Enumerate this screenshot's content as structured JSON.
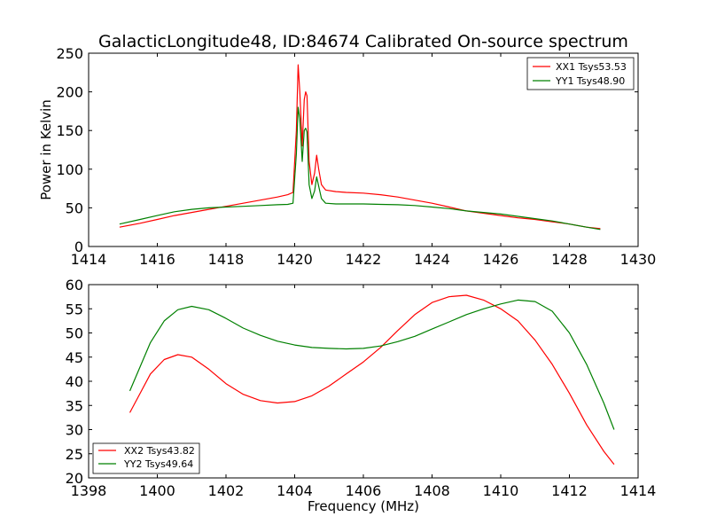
{
  "chart_data": [
    {
      "type": "line",
      "title": "GalacticLongitude48, ID:84674 Calibrated On-source spectrum",
      "xlabel": "",
      "ylabel": "Power in Kelvin",
      "xlim": [
        1414,
        1430
      ],
      "ylim": [
        0,
        250
      ],
      "xticks": [
        "1414",
        "1416",
        "1418",
        "1420",
        "1422",
        "1424",
        "1426",
        "1428",
        "1430"
      ],
      "yticks": [
        "0",
        "50",
        "100",
        "150",
        "200",
        "250"
      ],
      "grid": false,
      "legend_position": "top-right",
      "series": [
        {
          "name": "XX1 Tsys53.53",
          "color": "#ff0000",
          "x": [
            1414.9,
            1415.5,
            1416,
            1416.5,
            1417,
            1417.5,
            1418,
            1418.5,
            1419,
            1419.5,
            1419.8,
            1419.95,
            1420.05,
            1420.1,
            1420.15,
            1420.22,
            1420.28,
            1420.32,
            1420.36,
            1420.42,
            1420.5,
            1420.58,
            1420.64,
            1420.7,
            1420.78,
            1420.9,
            1421.2,
            1421.5,
            1422,
            1422.5,
            1423,
            1423.5,
            1424,
            1424.5,
            1425,
            1425.5,
            1426,
            1426.5,
            1427,
            1427.5,
            1428,
            1428.5,
            1428.9
          ],
          "y": [
            25,
            30,
            35,
            40,
            44,
            48,
            52,
            56,
            60,
            64,
            67,
            70,
            150,
            235,
            200,
            130,
            190,
            200,
            195,
            110,
            80,
            95,
            118,
            100,
            80,
            73,
            71,
            70,
            69,
            67,
            64,
            60,
            56,
            51,
            46,
            43,
            40,
            37,
            35,
            32,
            29,
            25,
            23
          ]
        },
        {
          "name": "YY1 Tsys48.90",
          "color": "#008000",
          "x": [
            1414.9,
            1415.5,
            1416,
            1416.5,
            1417,
            1417.5,
            1418,
            1418.5,
            1419,
            1419.5,
            1419.8,
            1419.95,
            1420.05,
            1420.1,
            1420.15,
            1420.22,
            1420.28,
            1420.32,
            1420.36,
            1420.42,
            1420.5,
            1420.58,
            1420.64,
            1420.7,
            1420.78,
            1420.9,
            1421.2,
            1421.5,
            1422,
            1422.5,
            1423,
            1423.5,
            1424,
            1424.5,
            1425,
            1425.5,
            1426,
            1426.5,
            1427,
            1427.5,
            1428,
            1428.5,
            1428.9
          ],
          "y": [
            29,
            35,
            40,
            45,
            48,
            50,
            51,
            52,
            53,
            54,
            54.5,
            56,
            120,
            180,
            165,
            110,
            150,
            153,
            148,
            80,
            62,
            72,
            90,
            78,
            62,
            56,
            55,
            55,
            55,
            54.5,
            54,
            53,
            51,
            49,
            46,
            44,
            42,
            39,
            36,
            33,
            29,
            25,
            22
          ]
        }
      ]
    },
    {
      "type": "line",
      "title": "",
      "xlabel": "Frequency (MHz)",
      "ylabel": "",
      "xlim": [
        1398,
        1414
      ],
      "ylim": [
        20,
        60
      ],
      "xticks": [
        "1398",
        "1400",
        "1402",
        "1404",
        "1406",
        "1408",
        "1410",
        "1412",
        "1414"
      ],
      "yticks": [
        "20",
        "25",
        "30",
        "35",
        "40",
        "45",
        "50",
        "55",
        "60"
      ],
      "grid": false,
      "legend_position": "bottom-left",
      "series": [
        {
          "name": "XX2 Tsys43.82",
          "color": "#ff0000",
          "x": [
            1399.2,
            1399.5,
            1399.8,
            1400.2,
            1400.6,
            1401.0,
            1401.5,
            1402.0,
            1402.5,
            1403.0,
            1403.5,
            1404.0,
            1404.5,
            1405.0,
            1405.5,
            1406.0,
            1406.5,
            1407.0,
            1407.5,
            1408.0,
            1408.5,
            1409.0,
            1409.5,
            1410.0,
            1410.5,
            1411.0,
            1411.5,
            1412.0,
            1412.5,
            1413.0,
            1413.3
          ],
          "y": [
            33.5,
            37.5,
            41.5,
            44.5,
            45.5,
            45.0,
            42.5,
            39.5,
            37.3,
            36.0,
            35.5,
            35.8,
            37.0,
            39.0,
            41.5,
            44.0,
            47.0,
            50.5,
            53.8,
            56.3,
            57.5,
            57.8,
            56.8,
            55.0,
            52.5,
            48.5,
            43.5,
            37.5,
            31.0,
            25.5,
            22.8
          ]
        },
        {
          "name": "YY2 Tsys49.64",
          "color": "#008000",
          "x": [
            1399.2,
            1399.5,
            1399.8,
            1400.2,
            1400.6,
            1401.0,
            1401.5,
            1402.0,
            1402.5,
            1403.0,
            1403.5,
            1404.0,
            1404.5,
            1405.0,
            1405.5,
            1406.0,
            1406.5,
            1407.0,
            1407.5,
            1408.0,
            1408.5,
            1409.0,
            1409.5,
            1410.0,
            1410.5,
            1411.0,
            1411.5,
            1412.0,
            1412.5,
            1413.0,
            1413.3
          ],
          "y": [
            38.0,
            43.0,
            48.0,
            52.5,
            54.8,
            55.5,
            54.8,
            53.0,
            51.0,
            49.5,
            48.3,
            47.5,
            47.0,
            46.8,
            46.7,
            46.8,
            47.3,
            48.2,
            49.3,
            50.8,
            52.3,
            53.8,
            55.0,
            56.0,
            56.8,
            56.5,
            54.5,
            50.0,
            43.5,
            35.5,
            30.0
          ]
        }
      ]
    }
  ]
}
